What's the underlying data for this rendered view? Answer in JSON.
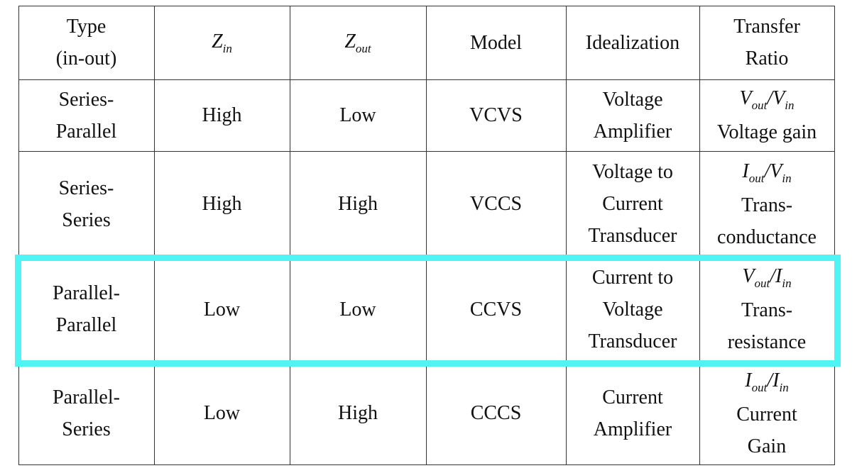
{
  "table": {
    "header": [
      [
        "Type",
        "(in-out)"
      ],
      [
        [
          {
            "italic": "Z"
          },
          {
            "sub": "in"
          }
        ]
      ],
      [
        [
          {
            "italic": "Z"
          },
          {
            "sub": "out"
          }
        ]
      ],
      [
        "Model"
      ],
      [
        "Idealization"
      ],
      [
        "Transfer",
        "Ratio"
      ]
    ],
    "rows": [
      [
        [
          "Series-",
          "Parallel"
        ],
        [
          "High"
        ],
        [
          "Low"
        ],
        [
          "VCVS"
        ],
        [
          "Voltage",
          "Amplifier"
        ],
        [
          [
            {
              "italic": "V"
            },
            {
              "sub": "out"
            },
            {
              "italic": "/"
            },
            {
              "italic": "V"
            },
            {
              "sub": "in"
            }
          ],
          "Voltage gain"
        ]
      ],
      [
        [
          "Series-",
          "Series"
        ],
        [
          "High"
        ],
        [
          "High"
        ],
        [
          "VCCS"
        ],
        [
          "Voltage to",
          "Current",
          "Transducer"
        ],
        [
          [
            {
              "italic": "I"
            },
            {
              "sub": "out"
            },
            {
              "italic": "/"
            },
            {
              "italic": "V"
            },
            {
              "sub": "in"
            }
          ],
          "Trans-",
          "conductance"
        ]
      ],
      [
        [
          "Parallel-",
          "Parallel"
        ],
        [
          "Low"
        ],
        [
          "Low"
        ],
        [
          "CCVS"
        ],
        [
          "Current to",
          "Voltage",
          "Transducer"
        ],
        [
          [
            {
              "italic": "V"
            },
            {
              "sub": "out"
            },
            {
              "italic": "/"
            },
            {
              "italic": "I"
            },
            {
              "sub": "in"
            }
          ],
          "Trans-",
          "resistance"
        ]
      ],
      [
        [
          "Parallel-",
          "Series"
        ],
        [
          "Low"
        ],
        [
          "High"
        ],
        [
          "CCCS"
        ],
        [
          "Current",
          "Amplifier"
        ],
        [
          [
            {
              "italic": "I"
            },
            {
              "sub": "out"
            },
            {
              "italic": "/"
            },
            {
              "italic": "I"
            },
            {
              "sub": "in"
            }
          ],
          "Current",
          "Gain"
        ]
      ]
    ]
  }
}
